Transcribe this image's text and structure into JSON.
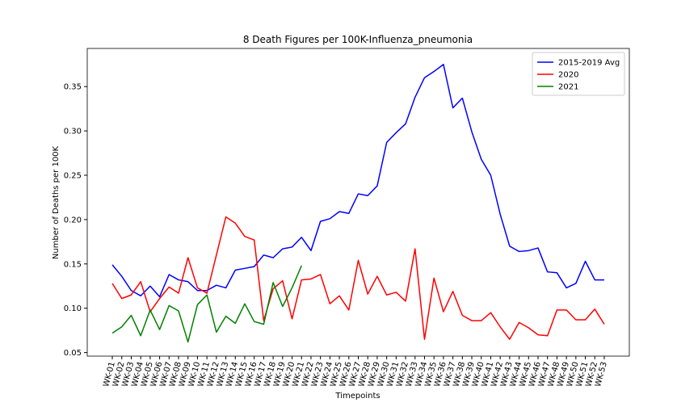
{
  "chart_data": {
    "type": "line",
    "title": "8 Death Figures per 100K-Influenza_pneumonia",
    "x_label": "Timepoints",
    "y_label": "Number of Deaths per 100K",
    "categories": [
      "WK-01",
      "WK-02",
      "WK-03",
      "WK-04",
      "WK-05",
      "WK-06",
      "WK-07",
      "WK-08",
      "WK-09",
      "WK-10",
      "WK-11",
      "WK-12",
      "WK-13",
      "WK-14",
      "WK-15",
      "WK-16",
      "WK-17",
      "WK-18",
      "WK-19",
      "WK-20",
      "WK-21",
      "WK-22",
      "WK-23",
      "WK-24",
      "WK-25",
      "WK-26",
      "WK-27",
      "WK-28",
      "WK-29",
      "WK-30",
      "WK-31",
      "WK-32",
      "WK-33",
      "WK-34",
      "WK-35",
      "WK-36",
      "WK-37",
      "WK-38",
      "WK-39",
      "WK-40",
      "WK-41",
      "WK-42",
      "WK-43",
      "WK-44",
      "WK-45",
      "WK-46",
      "WK-47",
      "WK-48",
      "WK-49",
      "WK-50",
      "WK-51",
      "WK-52",
      "WK-53"
    ],
    "series": [
      {
        "name": "2015-2019 Avg",
        "color": "#0000ff",
        "values": [
          0.149,
          0.136,
          0.12,
          0.114,
          0.125,
          0.113,
          0.138,
          0.132,
          0.13,
          0.12,
          0.12,
          0.126,
          0.123,
          0.143,
          0.145,
          0.147,
          0.16,
          0.157,
          0.167,
          0.169,
          0.18,
          0.165,
          0.198,
          0.201,
          0.209,
          0.207,
          0.229,
          0.227,
          0.238,
          0.287,
          0.298,
          0.308,
          0.338,
          0.36,
          0.367,
          0.375,
          0.326,
          0.337,
          0.299,
          0.268,
          0.25,
          0.206,
          0.17,
          0.164,
          0.165,
          0.168,
          0.141,
          0.14,
          0.123,
          0.128,
          0.153,
          0.132,
          0.132
        ]
      },
      {
        "name": "2020",
        "color": "#ff0000",
        "values": [
          0.128,
          0.111,
          0.115,
          0.13,
          0.096,
          0.111,
          0.124,
          0.117,
          0.157,
          0.123,
          0.117,
          0.16,
          0.203,
          0.196,
          0.181,
          0.177,
          0.086,
          0.122,
          0.131,
          0.088,
          0.132,
          0.133,
          0.138,
          0.105,
          0.114,
          0.098,
          0.154,
          0.116,
          0.136,
          0.115,
          0.118,
          0.108,
          0.167,
          0.065,
          0.134,
          0.096,
          0.119,
          0.092,
          0.086,
          0.086,
          0.095,
          0.079,
          0.065,
          0.084,
          0.078,
          0.07,
          0.069,
          0.098,
          0.098,
          0.087,
          0.087,
          0.099,
          0.082
        ]
      },
      {
        "name": "2021",
        "color": "#008000",
        "values": [
          0.072,
          0.079,
          0.092,
          0.069,
          0.098,
          0.076,
          0.103,
          0.097,
          0.062,
          0.104,
          0.115,
          0.073,
          0.091,
          0.083,
          0.105,
          0.085,
          0.082,
          0.129,
          0.102,
          0.123,
          0.148,
          null,
          null,
          null,
          null,
          null,
          null,
          null,
          null,
          null,
          null,
          null,
          null,
          null,
          null,
          null,
          null,
          null,
          null,
          null,
          null,
          null,
          null,
          null,
          null,
          null,
          null,
          null,
          null,
          null,
          null,
          null,
          null
        ]
      }
    ],
    "ylim": [
      0.046,
      0.393
    ],
    "yticks": [
      0.05,
      {
        "value": 0.1,
        "label": "0.10"
      },
      0.15,
      {
        "value": 0.2,
        "label": "0.20"
      },
      0.25,
      {
        "value": 0.3,
        "label": "0.30"
      },
      0.35
    ],
    "legend": "upper right",
    "grid": false
  }
}
